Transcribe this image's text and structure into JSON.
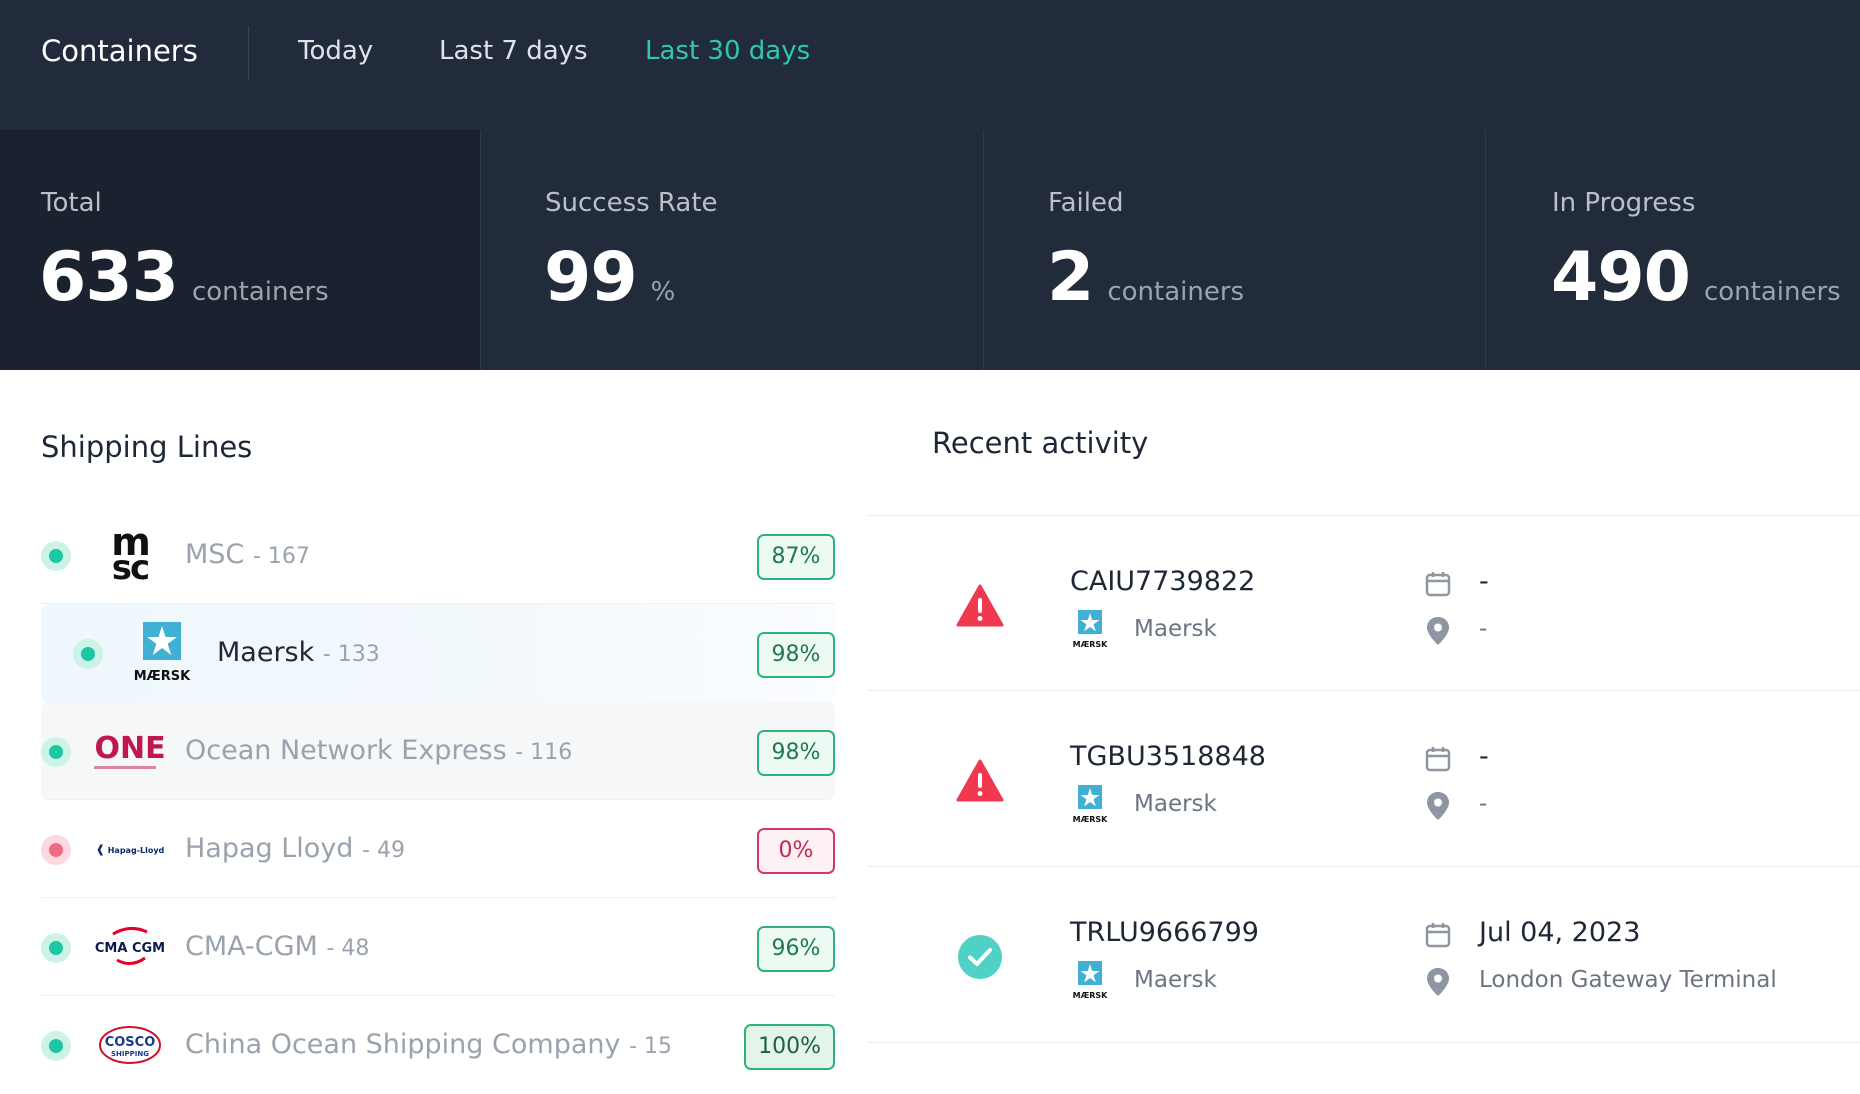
{
  "header": {
    "title": "Containers",
    "tabs": [
      {
        "label": "Today",
        "active": false
      },
      {
        "label": "Last 7 days",
        "active": false
      },
      {
        "label": "Last 30 days",
        "active": true
      }
    ]
  },
  "stats": [
    {
      "label": "Total",
      "value": "633",
      "unit": "containers"
    },
    {
      "label": "Success Rate",
      "value": "99",
      "unit": "%"
    },
    {
      "label": "Failed",
      "value": "2",
      "unit": "containers"
    },
    {
      "label": "In Progress",
      "value": "490",
      "unit": "containers"
    }
  ],
  "shipping_lines": {
    "title": "Shipping Lines",
    "items": [
      {
        "name": "MSC",
        "count": "- 167",
        "percent": "87%",
        "status": "ok",
        "logo": "msc-logo"
      },
      {
        "name": "Maersk",
        "count": "- 133",
        "percent": "98%",
        "status": "ok",
        "logo": "maersk-logo"
      },
      {
        "name": "Ocean Network Express",
        "count": "- 116",
        "percent": "98%",
        "status": "ok",
        "logo": "one-logo"
      },
      {
        "name": "Hapag Lloyd",
        "count": "- 49",
        "percent": "0%",
        "status": "error",
        "logo": "hapag-lloyd-logo"
      },
      {
        "name": "CMA-CGM",
        "count": "- 48",
        "percent": "96%",
        "status": "ok",
        "logo": "cma-cgm-logo"
      },
      {
        "name": "China Ocean Shipping Company",
        "count": "- 15",
        "percent": "100%",
        "status": "ok",
        "logo": "cosco-logo"
      }
    ],
    "logo_text": {
      "msc_top": "m",
      "msc_bottom": "sc",
      "maersk": "MÆRSK",
      "one": "ONE",
      "hapag": "Hapag-Lloyd",
      "cma": "CMA CGM",
      "cosco_top": "COSCO",
      "cosco_bottom": "SHIPPING"
    }
  },
  "recent_activity": {
    "title": "Recent activity",
    "items": [
      {
        "container": "CAIU7739822",
        "carrier": "Maersk",
        "date": "-",
        "location": "-",
        "status": "error"
      },
      {
        "container": "TGBU3518848",
        "carrier": "Maersk",
        "date": "-",
        "location": "-",
        "status": "error"
      },
      {
        "container": "TRLU9666799",
        "carrier": "Maersk",
        "date": "Jul 04, 2023",
        "location": "London Gateway Terminal",
        "status": "success"
      }
    ]
  },
  "colors": {
    "accent": "#2fc7b0",
    "header_bg": "#212b3b",
    "success": "#4fd1c5",
    "error": "#f0384f",
    "maersk_blue": "#42b0d5"
  }
}
